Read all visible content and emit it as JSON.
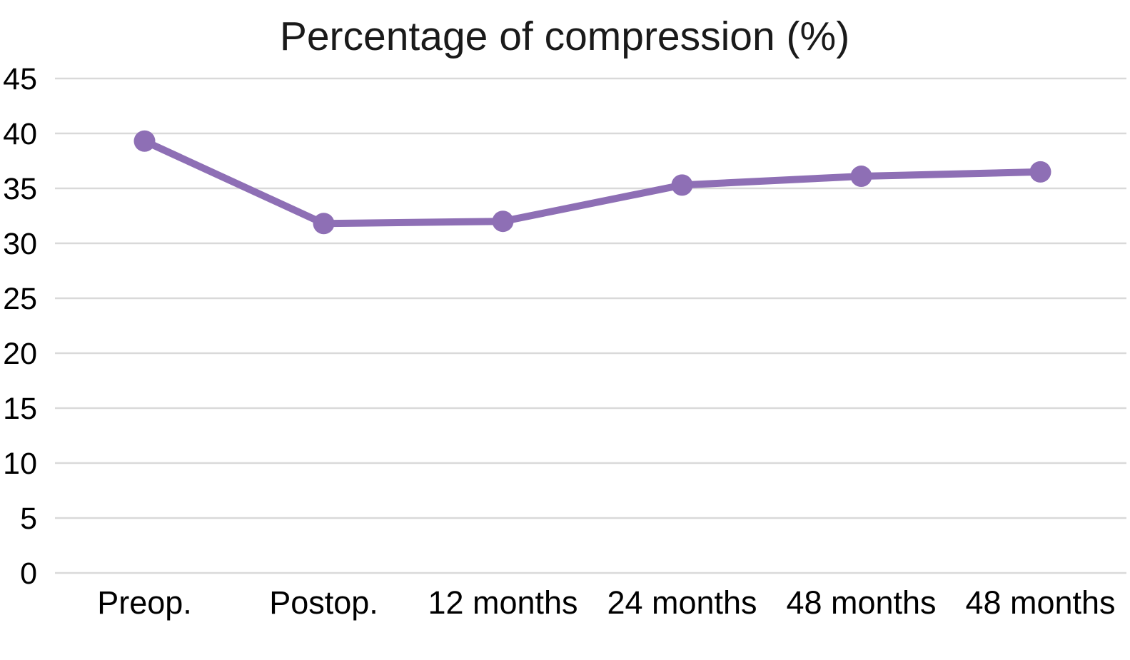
{
  "chart_data": {
    "type": "line",
    "title": "Percentage of compression (%)",
    "categories": [
      "Preop.",
      "Postop.",
      "12 months",
      "24 months",
      "48 months",
      "48 months"
    ],
    "series": [
      {
        "name": "Percentage of compression (%)",
        "values": [
          39.3,
          31.8,
          32.0,
          35.3,
          36.1,
          36.5
        ]
      }
    ],
    "xlabel": "",
    "ylabel": "",
    "ylim": [
      0,
      45
    ],
    "yticks": [
      0,
      5,
      10,
      15,
      20,
      25,
      30,
      35,
      40,
      45
    ],
    "grid": "horizontal",
    "legend": "none",
    "marker": "circle",
    "colors": {
      "line": "#8e6fb5",
      "marker": "#8e6fb5",
      "gridline": "#d9d9d9",
      "text": "#000000",
      "background": "#ffffff"
    }
  }
}
